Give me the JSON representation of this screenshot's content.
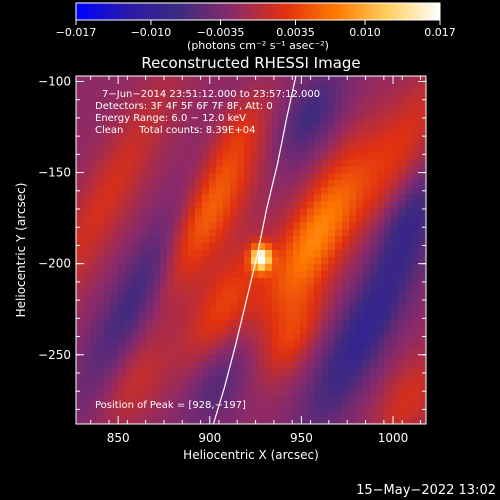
{
  "chart_data": {
    "type": "heatmap",
    "title": "Reconstructed RHESSI Image",
    "xlabel": "Heliocentric X (arcsec)",
    "ylabel": "Heliocentric Y (arcsec)",
    "xlim": [
      827,
      1018
    ],
    "ylim": [
      -288,
      -97
    ],
    "x_ticks": [
      850,
      900,
      950,
      1000
    ],
    "y_ticks": [
      -100,
      -150,
      -200,
      -250
    ],
    "x_tick_labels": [
      "850",
      "900",
      "950",
      "1000"
    ],
    "y_tick_labels": [
      "−100",
      "−150",
      "−200",
      "−250"
    ],
    "annotations": [
      "7−Jun−2014 23:51:12.000 to 23:57:12.000",
      "Detectors: 3F 4F 5F 6F 7F 8F, Att: 0",
      "Energy Range: 6.0 − 12.0 keV",
      "Clean     Total counts: 8.39E+04"
    ],
    "peak_label": "Position of Peak = [928,−197]",
    "peak_position": [
      928,
      -197
    ],
    "colorbar": {
      "min": -0.017,
      "max": 0.017,
      "tick_values": [
        -0.017,
        -0.01,
        -0.0035,
        0.0035,
        0.01,
        0.017
      ],
      "tick_labels": [
        "−0.017",
        "−0.010",
        "−0.0035",
        "0.0035",
        "0.010",
        "0.017"
      ],
      "units": "(photons cm⁻² s⁻¹ asec⁻²)",
      "colors": [
        "#0000ff",
        "#2a1aa8",
        "#3d2a80",
        "#8a2a6a",
        "#e03010",
        "#ff7a00",
        "#ffd060",
        "#ffffff"
      ]
    },
    "limb_curve": [
      [
        947,
        -97
      ],
      [
        942,
        -120
      ],
      [
        937,
        -145
      ],
      [
        931,
        -170
      ],
      [
        926,
        -195
      ],
      [
        920,
        -220
      ],
      [
        914,
        -245
      ],
      [
        908,
        -268
      ],
      [
        902,
        -288
      ]
    ],
    "features": [
      {
        "type": "source",
        "x": 928,
        "y": -197,
        "peak": 0.017,
        "sx": 4,
        "sy": 5,
        "angle": 0
      },
      {
        "type": "lobe",
        "x": 896,
        "y": -170,
        "peak": 0.01,
        "sx": 12,
        "sy": 34,
        "angle": 28
      },
      {
        "type": "lobe",
        "x": 908,
        "y": -222,
        "peak": 0.0055,
        "sx": 10,
        "sy": 26,
        "angle": 28
      },
      {
        "type": "lobe",
        "x": 958,
        "y": -185,
        "peak": 0.01,
        "sx": 11,
        "sy": 38,
        "angle": 28
      },
      {
        "type": "lobe",
        "x": 946,
        "y": -240,
        "peak": 0.0045,
        "sx": 8,
        "sy": 18,
        "angle": 28
      },
      {
        "type": "lobe",
        "x": 843,
        "y": -165,
        "peak": 0.004,
        "sx": 10,
        "sy": 55,
        "angle": 28
      },
      {
        "type": "lobe",
        "x": 1005,
        "y": -135,
        "peak": 0.004,
        "sx": 10,
        "sy": 35,
        "angle": 28
      },
      {
        "type": "lobe",
        "x": 915,
        "y": -125,
        "peak": 0.003,
        "sx": 8,
        "sy": 18,
        "angle": 28
      },
      {
        "type": "lobe",
        "x": 1008,
        "y": -275,
        "peak": 0.004,
        "sx": 10,
        "sy": 20,
        "angle": 28
      },
      {
        "type": "lobe",
        "x": 860,
        "y": -265,
        "peak": 0.003,
        "sx": 10,
        "sy": 20,
        "angle": 28
      },
      {
        "type": "trough",
        "x": 872,
        "y": -195,
        "peak": -0.007,
        "sx": 9,
        "sy": 55,
        "angle": 28
      },
      {
        "type": "trough",
        "x": 985,
        "y": -235,
        "peak": -0.007,
        "sx": 10,
        "sy": 45,
        "angle": 28
      },
      {
        "type": "trough",
        "x": 955,
        "y": -118,
        "peak": -0.005,
        "sx": 10,
        "sy": 20,
        "angle": 28
      },
      {
        "type": "trough",
        "x": 905,
        "y": -265,
        "peak": -0.004,
        "sx": 10,
        "sy": 20,
        "angle": 28
      },
      {
        "type": "trough",
        "x": 1008,
        "y": -175,
        "peak": -0.004,
        "sx": 8,
        "sy": 20,
        "angle": 28
      }
    ]
  },
  "footer": {
    "timestamp": "15−May−2022 13:02"
  }
}
